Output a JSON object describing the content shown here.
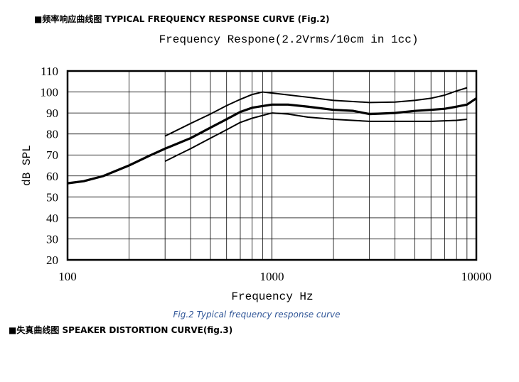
{
  "header": "■频率响应曲线图 TYPICAL FREQUENCY RESPONSE CURVE (Fig.2)",
  "chart_data": {
    "type": "line",
    "title": "Frequency Respone(2.2Vrms/10cm in 1cc)",
    "xlabel": "Frequency Hz",
    "ylabel": "dB SPL",
    "xscale": "log",
    "xlim": [
      100,
      10000
    ],
    "xticks": [
      100,
      1000,
      10000
    ],
    "ylim": [
      20,
      110
    ],
    "yticks": [
      20,
      30,
      40,
      50,
      60,
      70,
      80,
      90,
      100,
      110
    ],
    "grid": true,
    "minor_grid": true,
    "series": [
      {
        "color": "#000000",
        "width": 2,
        "x": [
          300,
          400,
          500,
          600,
          700,
          800,
          900,
          1000,
          1500,
          2000,
          3000,
          4000,
          5000,
          6000,
          7000,
          8000,
          9000
        ],
        "values": [
          79,
          85,
          89.5,
          93.5,
          96.5,
          98.8,
          100,
          99.5,
          97.5,
          96,
          95,
          95.2,
          96,
          97,
          98.5,
          100.5,
          102
        ]
      },
      {
        "color": "#000000",
        "width": 3.2,
        "x": [
          100,
          120,
          150,
          200,
          250,
          300,
          400,
          500,
          600,
          700,
          800,
          1000,
          1200,
          1500,
          2000,
          2500,
          3000,
          4000,
          5000,
          6000,
          7000,
          8000,
          9000,
          10000
        ],
        "values": [
          56.5,
          57.5,
          60,
          65,
          69.5,
          73,
          78,
          83,
          87,
          90.5,
          92.5,
          94,
          94,
          93,
          91.5,
          91,
          89.5,
          90,
          91,
          91.5,
          92,
          93,
          94,
          97
        ]
      },
      {
        "color": "#000000",
        "width": 2,
        "x": [
          300,
          400,
          500,
          600,
          700,
          800,
          1000,
          1200,
          1500,
          2000,
          3000,
          4000,
          5000,
          6000,
          8000,
          9000
        ],
        "values": [
          67,
          73,
          78,
          82,
          85.5,
          87.5,
          90,
          89.5,
          88,
          87,
          86,
          86,
          86,
          86,
          86.5,
          87
        ]
      }
    ]
  },
  "caption": "Fig.2 Typical frequency response curve",
  "next_heading": "■失真曲线图 SPEAKER DISTORTION CURVE(fig.3)"
}
